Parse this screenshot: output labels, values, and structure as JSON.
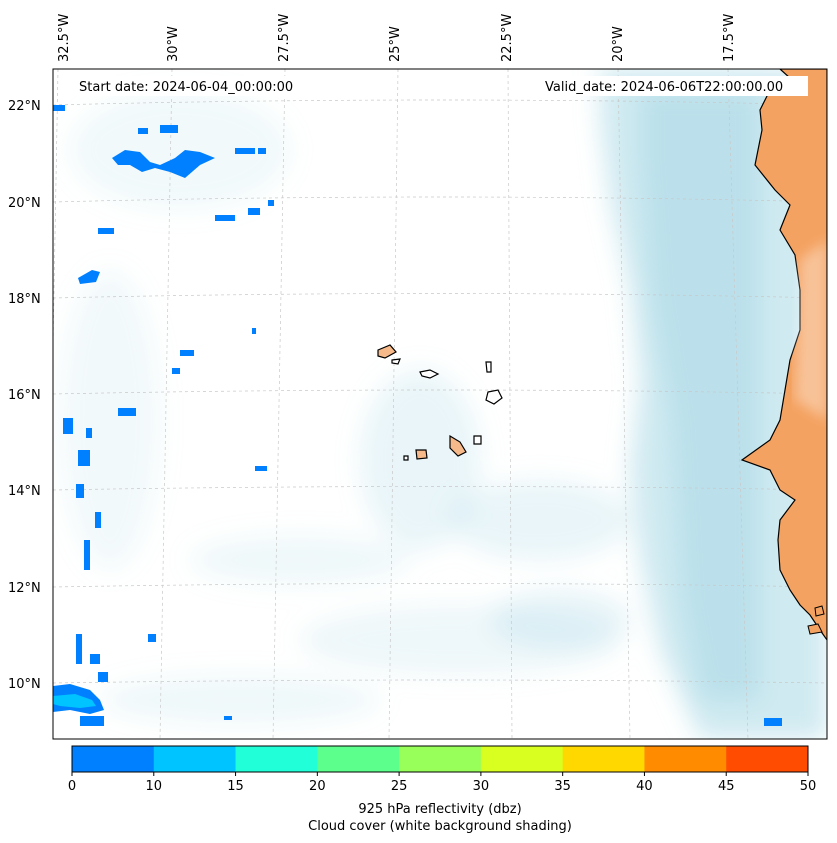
{
  "map": {
    "start_label": "Start date: 2024-06-04_00:00:00",
    "valid_label": "Valid_date: 2024-06-06T22:00:00.00",
    "lon_labels": [
      "32.5°W",
      "30°W",
      "27.5°W",
      "25°W",
      "22.5°W",
      "20°W",
      "17.5°W"
    ],
    "lat_labels": [
      "22°N",
      "20°N",
      "18°N",
      "16°N",
      "14°N",
      "12°N",
      "10°N"
    ],
    "land_color": "#f4a261",
    "island_color": "#f6b98a",
    "cloud_color": "#a8d8e6",
    "grid_style": "dashed-light-gray"
  },
  "colorbar": {
    "ticks": [
      "0",
      "10",
      "15",
      "20",
      "25",
      "30",
      "35",
      "40",
      "45",
      "50"
    ],
    "colors": [
      "#0080ff",
      "#00c4ff",
      "#20ffd8",
      "#5cff8c",
      "#98ff5a",
      "#d8ff20",
      "#ffd800",
      "#ff8c00",
      "#ff4c00"
    ],
    "label_line1": "925 hPa reflectivity (dbz)",
    "label_line2": "Cloud cover (white background shading)"
  }
}
